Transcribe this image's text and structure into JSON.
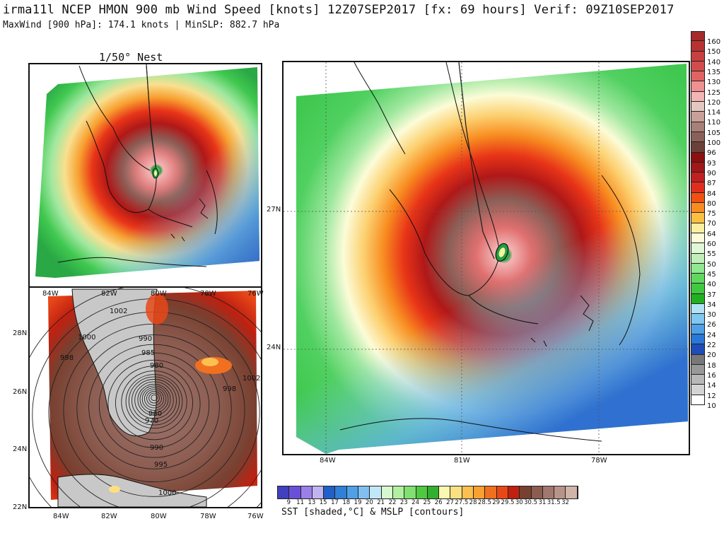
{
  "header": {
    "title": "irma11l NCEP HMON 900 mb Wind Speed [knots] 12Z07SEP2017 [fx: 69 hours] Verif: 09Z10SEP2017",
    "subtitle": "MaxWind [900 hPa]: 174.1 knots | MinSLP: 882.7 hPa"
  },
  "nest_panel": {
    "label": "1/50° Nest"
  },
  "sst_panel": {
    "lon_ticks": [
      "84W",
      "82W",
      "80W",
      "78W",
      "76W"
    ],
    "lat_ticks": [
      "28N",
      "26N",
      "24N",
      "22N"
    ],
    "top_lon_ticks": [
      "84W",
      "82W",
      "80W",
      "78W",
      "76W"
    ],
    "isobar_labels": [
      "1002",
      "1000",
      "998",
      "990",
      "985",
      "980",
      "960",
      "970",
      "990",
      "995",
      "1000",
      "998",
      "1002"
    ]
  },
  "main_panel": {
    "lon_ticks": [
      "84W",
      "81W",
      "78W"
    ],
    "lat_ticks": [
      "27N",
      "24N"
    ]
  },
  "wind_colorbar": {
    "labels": [
      "160",
      "150",
      "140",
      "135",
      "130",
      "125",
      "120",
      "114",
      "110",
      "105",
      "100",
      "96",
      "93",
      "90",
      "87",
      "84",
      "80",
      "75",
      "70",
      "64",
      "60",
      "55",
      "50",
      "45",
      "40",
      "37",
      "34",
      "30",
      "26",
      "24",
      "22",
      "20",
      "18",
      "16",
      "14",
      "12",
      "10"
    ],
    "colors": [
      "#a52a2a",
      "#b83232",
      "#c84040",
      "#d24c4c",
      "#e06464",
      "#f09090",
      "#f4b4b4",
      "#e4c8c0",
      "#c8a098",
      "#a88078",
      "#8c6058",
      "#6a4038",
      "#8b1010",
      "#a01818",
      "#c02020",
      "#e02e1e",
      "#f05010",
      "#f88c20",
      "#fcc040",
      "#fcf0a0",
      "#fcfcd8",
      "#e0f8d8",
      "#c0f0b8",
      "#90e890",
      "#60d860",
      "#40c840",
      "#20b020",
      "#b0e4f4",
      "#80c8f0",
      "#50a0e8",
      "#2878d8",
      "#1e4cb8",
      "#787878",
      "#989898",
      "#b8b8b8",
      "#d4d4d4",
      "#ffffff"
    ]
  },
  "sst_colorbar": {
    "labels": [
      "9",
      "11",
      "13",
      "15",
      "17",
      "18",
      "19",
      "20",
      "21",
      "22",
      "23",
      "24",
      "25",
      "26",
      "27",
      "27.5",
      "28",
      "28.5",
      "29",
      "29.5",
      "30",
      "30.5",
      "31",
      "31.5",
      "32"
    ],
    "colors": [
      "#4040c0",
      "#6a50d8",
      "#9a80e8",
      "#c0b4f0",
      "#2060c8",
      "#3080d8",
      "#50a0e8",
      "#80c0f0",
      "#c0e8f8",
      "#d8f8d0",
      "#b0f0a0",
      "#80e070",
      "#50c840",
      "#30b030",
      "#f8f8b0",
      "#fce080",
      "#fcc050",
      "#f8a030",
      "#f07020",
      "#e84818",
      "#c02010",
      "#784030",
      "#8c5c50",
      "#a07870",
      "#b89488",
      "#d0b4a8"
    ],
    "title": "SST [shaded,°C] & MSLP [contours]"
  }
}
